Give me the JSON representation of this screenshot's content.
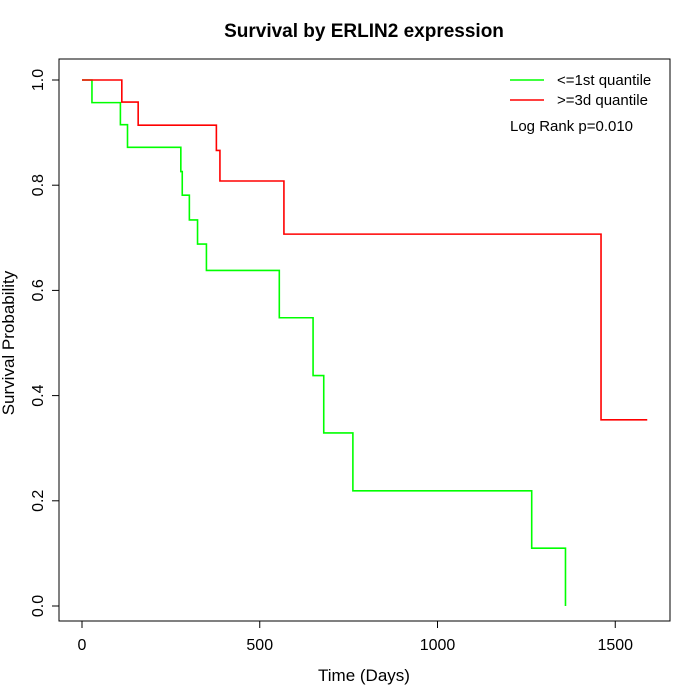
{
  "chart_data": {
    "type": "line",
    "title": "Survival by ERLIN2 expression",
    "xlabel": "Time (Days)",
    "ylabel": "Survival Probability",
    "xlim": [
      0,
      1650
    ],
    "ylim": [
      0,
      1.0
    ],
    "xticks": [
      0,
      500,
      1000,
      1500
    ],
    "yticks": [
      0.0,
      0.2,
      0.4,
      0.6,
      0.8,
      1.0
    ],
    "xtick_labels": [
      "0",
      "500",
      "1000",
      "1500"
    ],
    "ytick_labels": [
      "0.0",
      "0.2",
      "0.4",
      "0.6",
      "0.8",
      "1.0"
    ],
    "grid": false,
    "legend_position": "top-right",
    "annotation": "Log Rank p=0.010",
    "series": [
      {
        "name": "<=1st quantile",
        "color": "#00ff00",
        "step": true,
        "x": [
          0,
          28,
          108,
          128,
          278,
          282,
          302,
          325,
          350,
          555,
          650,
          680,
          762,
          1265,
          1360,
          1360
        ],
        "y": [
          1.0,
          0.957,
          0.915,
          0.872,
          0.826,
          0.781,
          0.734,
          0.688,
          0.638,
          0.548,
          0.438,
          0.329,
          0.219,
          0.11,
          0.11,
          0.0
        ]
      },
      {
        "name": ">=3d quantile",
        "color": "#ff0000",
        "step": true,
        "x": [
          0,
          112,
          158,
          378,
          388,
          568,
          1460,
          1590
        ],
        "y": [
          1.0,
          0.958,
          0.914,
          0.866,
          0.808,
          0.707,
          0.354,
          0.354
        ]
      }
    ]
  }
}
